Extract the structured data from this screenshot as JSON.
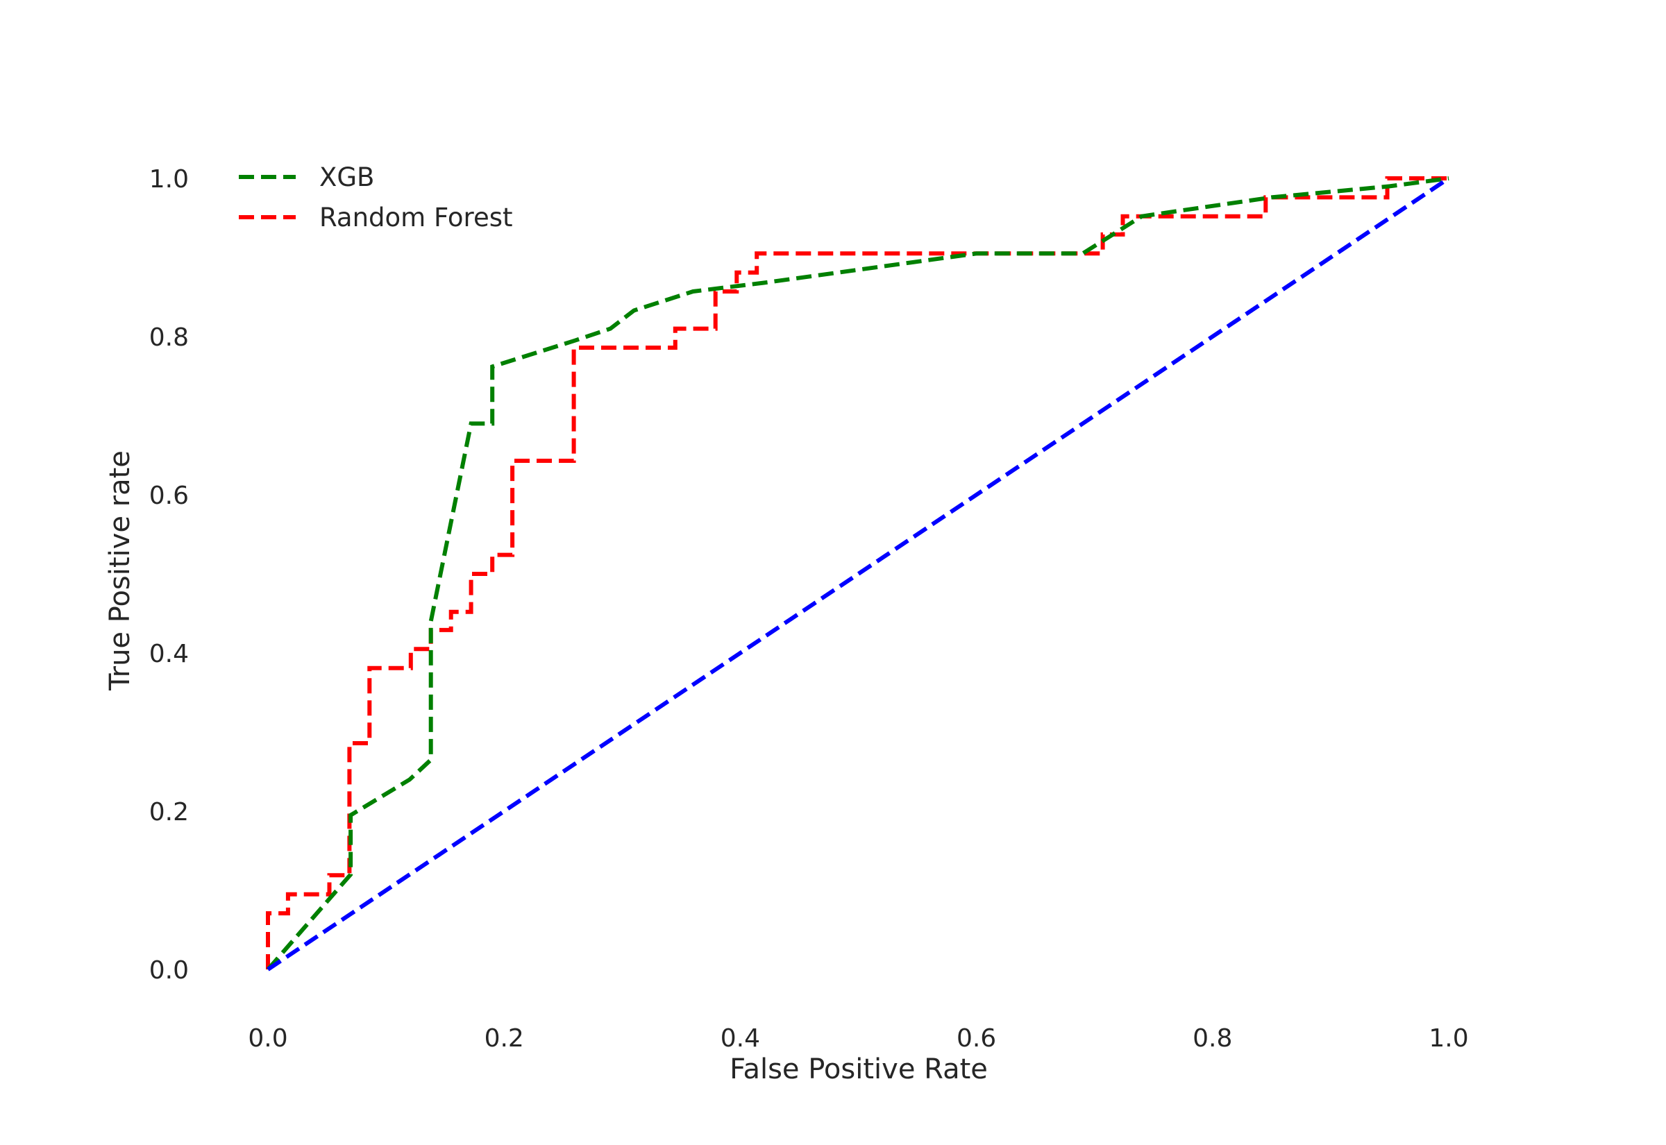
{
  "chart_data": {
    "type": "line",
    "title": "",
    "xlabel": "False Positive Rate",
    "ylabel": "True Positive rate",
    "xlim": [
      -0.1,
      1.1
    ],
    "ylim": [
      -0.06,
      1.18
    ],
    "xticks": [
      0.0,
      0.2,
      0.4,
      0.6,
      0.8,
      1.0
    ],
    "yticks": [
      0.0,
      0.2,
      0.4,
      0.6,
      0.8,
      1.0
    ],
    "xtick_labels": [
      "0.0",
      "0.2",
      "0.4",
      "0.6",
      "0.8",
      "1.0"
    ],
    "ytick_labels": [
      "0.0",
      "0.2",
      "0.4",
      "0.6",
      "0.8",
      "1.0"
    ],
    "grid": false,
    "legend_position": "top-left",
    "series": [
      {
        "name": "XGB",
        "color": "#008000",
        "dash": "dashed",
        "points": [
          [
            0.0,
            0.0
          ],
          [
            0.07,
            0.12
          ],
          [
            0.07,
            0.195
          ],
          [
            0.12,
            0.24
          ],
          [
            0.138,
            0.265
          ],
          [
            0.138,
            0.44
          ],
          [
            0.172,
            0.69
          ],
          [
            0.19,
            0.69
          ],
          [
            0.19,
            0.762
          ],
          [
            0.26,
            0.795
          ],
          [
            0.29,
            0.81
          ],
          [
            0.31,
            0.833
          ],
          [
            0.36,
            0.857
          ],
          [
            0.42,
            0.868
          ],
          [
            0.6,
            0.905
          ],
          [
            0.69,
            0.905
          ],
          [
            0.74,
            0.952
          ],
          [
            0.85,
            0.976
          ],
          [
            0.95,
            0.99
          ],
          [
            1.0,
            1.0
          ]
        ]
      },
      {
        "name": "Random Forest",
        "color": "#ff0000",
        "dash": "dashed",
        "points": [
          [
            0.0,
            0.0
          ],
          [
            0.0,
            0.071
          ],
          [
            0.017,
            0.071
          ],
          [
            0.017,
            0.095
          ],
          [
            0.052,
            0.095
          ],
          [
            0.052,
            0.119
          ],
          [
            0.069,
            0.119
          ],
          [
            0.069,
            0.286
          ],
          [
            0.086,
            0.286
          ],
          [
            0.086,
            0.381
          ],
          [
            0.121,
            0.381
          ],
          [
            0.121,
            0.405
          ],
          [
            0.138,
            0.405
          ],
          [
            0.138,
            0.429
          ],
          [
            0.155,
            0.429
          ],
          [
            0.155,
            0.452
          ],
          [
            0.172,
            0.452
          ],
          [
            0.172,
            0.5
          ],
          [
            0.19,
            0.5
          ],
          [
            0.19,
            0.524
          ],
          [
            0.207,
            0.524
          ],
          [
            0.207,
            0.643
          ],
          [
            0.259,
            0.643
          ],
          [
            0.259,
            0.786
          ],
          [
            0.345,
            0.786
          ],
          [
            0.345,
            0.81
          ],
          [
            0.379,
            0.81
          ],
          [
            0.379,
            0.857
          ],
          [
            0.397,
            0.857
          ],
          [
            0.397,
            0.881
          ],
          [
            0.414,
            0.881
          ],
          [
            0.414,
            0.905
          ],
          [
            0.707,
            0.905
          ],
          [
            0.707,
            0.929
          ],
          [
            0.724,
            0.929
          ],
          [
            0.724,
            0.952
          ],
          [
            0.845,
            0.952
          ],
          [
            0.845,
            0.976
          ],
          [
            0.948,
            0.976
          ],
          [
            0.948,
            1.0
          ],
          [
            1.0,
            1.0
          ]
        ]
      },
      {
        "color": "#0000ff",
        "dash": "dashed",
        "points": [
          [
            0.0,
            0.0
          ],
          [
            1.0,
            1.0
          ]
        ]
      }
    ]
  }
}
